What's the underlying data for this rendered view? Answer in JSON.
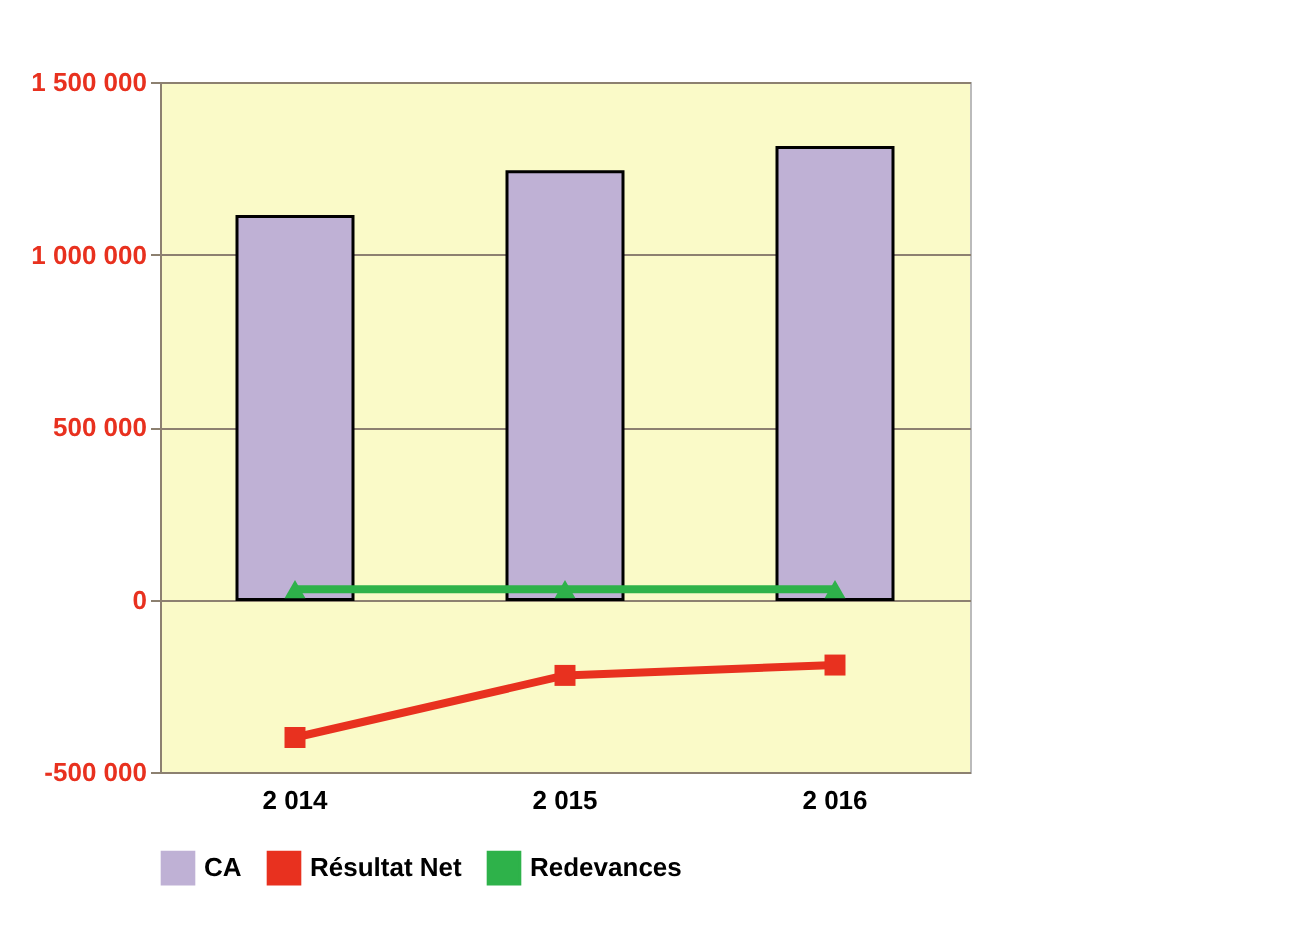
{
  "chart_data": {
    "type": "bar",
    "categories": [
      "2 014",
      "2 015",
      "2 016"
    ],
    "series": [
      {
        "name": "CA",
        "color": "#bfb1d5",
        "values": [
          1110000,
          1240000,
          1310000
        ]
      },
      {
        "name": "Résultat Net",
        "type": "line",
        "marker": "square",
        "color": "#e8311f",
        "values": [
          -400000,
          -220000,
          -190000
        ]
      },
      {
        "name": "Redevances",
        "type": "line",
        "marker": "triangle",
        "color": "#2eb24a",
        "values": [
          30000,
          30000,
          30000
        ]
      }
    ],
    "ylim": [
      -500000,
      1500000
    ],
    "yticks": [
      {
        "value": -500000,
        "label": "-500 000"
      },
      {
        "value": 0,
        "label": "0"
      },
      {
        "value": 500000,
        "label": "500 000"
      },
      {
        "value": 1000000,
        "label": "1 000 000"
      },
      {
        "value": 1500000,
        "label": "1 500 000"
      }
    ],
    "grid": "y",
    "legend": "bottom"
  }
}
